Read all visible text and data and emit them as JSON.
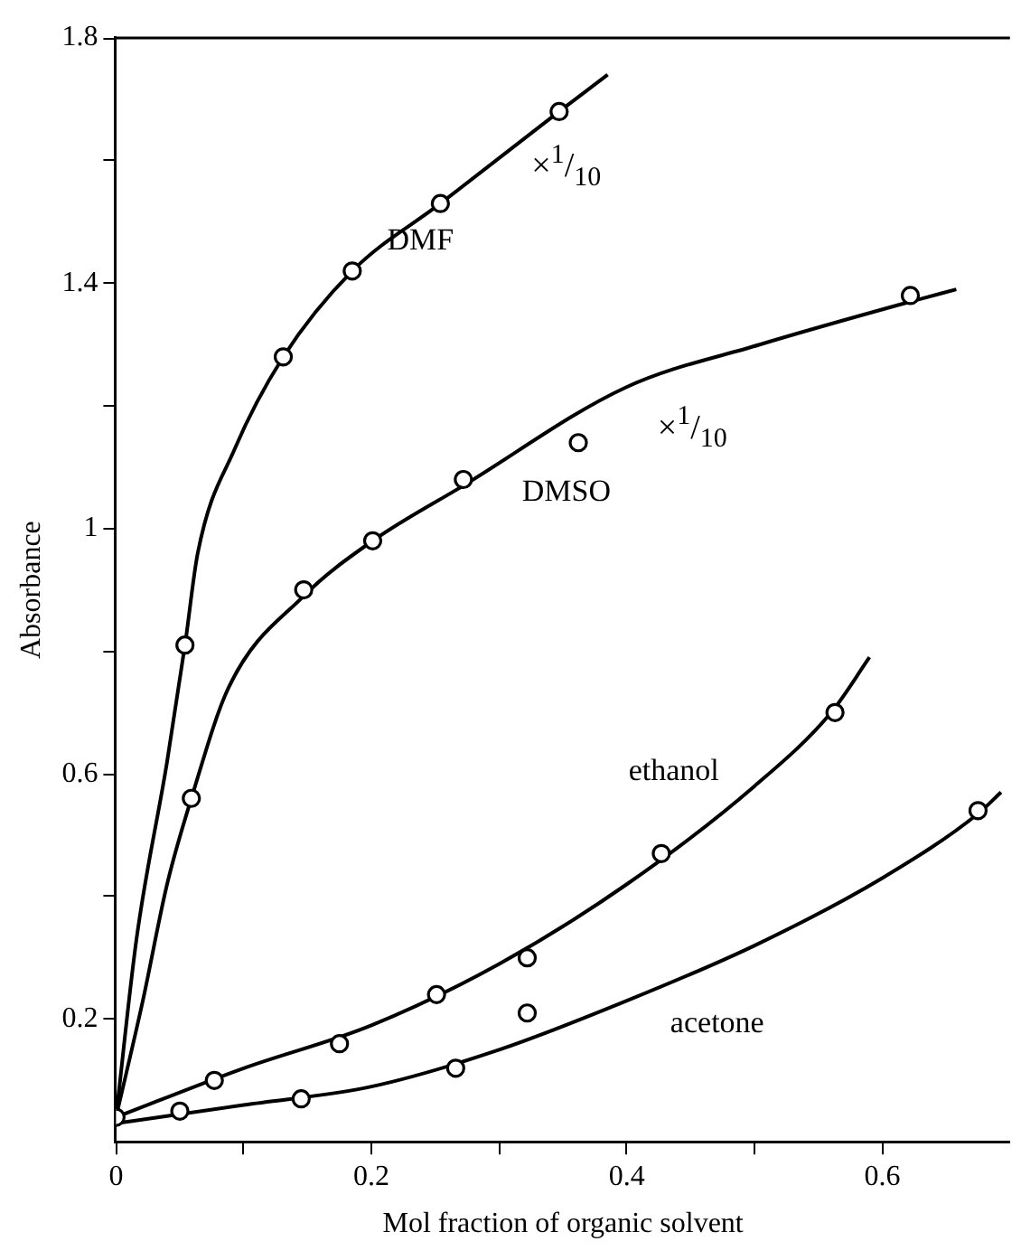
{
  "chart_data": {
    "type": "scatter",
    "xlabel": "Mol fraction of organic solvent",
    "ylabel": "Absorbance",
    "xlim": [
      0,
      0.7
    ],
    "ylim": [
      0,
      1.8
    ],
    "xticks": [
      0,
      {
        "value": 0.1,
        "label": null
      },
      0.2,
      {
        "value": 0.3,
        "label": null
      },
      0.4,
      {
        "value": 0.5,
        "label": null
      },
      0.6
    ],
    "yticks": [
      0.2,
      {
        "value": 0.4,
        "label": null
      },
      0.6,
      {
        "value": 0.8,
        "label": null
      },
      1.0,
      {
        "value": 1.2,
        "label": null
      },
      1.4,
      {
        "value": 1.6,
        "label": null
      },
      1.8
    ],
    "grid": false,
    "legend": false,
    "series": [
      {
        "color": "#000000",
        "marker": "circle",
        "x": [
          0.054,
          0.131,
          0.185,
          0.254,
          0.347
        ],
        "values": [
          0.81,
          1.28,
          1.42,
          1.53,
          1.68
        ]
      },
      {
        "type": "line",
        "name": "DMF",
        "color": "#000000",
        "marker": "none",
        "line_style": "solid",
        "x": [
          0,
          0.016,
          0.04,
          0.054,
          0.064,
          0.093,
          0.131,
          0.185,
          0.254,
          0.347,
          0.385
        ],
        "values": [
          0.04,
          0.33,
          0.62,
          0.81,
          0.96,
          1.13,
          1.28,
          1.42,
          1.53,
          1.68,
          1.74
        ]
      },
      {
        "color": "#000000",
        "marker": "circle",
        "x": [
          0.059,
          0.147,
          0.201,
          0.272,
          0.362,
          0.622
        ],
        "values": [
          0.56,
          0.9,
          0.98,
          1.08,
          1.14,
          1.38
        ]
      },
      {
        "type": "line",
        "name": "DMSO",
        "color": "#000000",
        "marker": "none",
        "line_style": "solid",
        "x": [
          0,
          0.021,
          0.04,
          0.059,
          0.088,
          0.147,
          0.201,
          0.272,
          0.399,
          0.504,
          0.622,
          0.658
        ],
        "values": [
          0.04,
          0.23,
          0.42,
          0.56,
          0.74,
          0.89,
          0.98,
          1.07,
          1.23,
          1.3,
          1.37,
          1.39
        ]
      },
      {
        "color": "#000000",
        "marker": "circle",
        "x": [
          0,
          0.077,
          0.175,
          0.251,
          0.322,
          0.427,
          0.563
        ],
        "values": [
          0.04,
          0.1,
          0.16,
          0.24,
          0.3,
          0.47,
          0.7
        ]
      },
      {
        "type": "line",
        "name": "ethanol",
        "color": "#000000",
        "marker": "none",
        "line_style": "solid",
        "x": [
          0,
          0.1,
          0.2,
          0.3,
          0.4,
          0.5,
          0.56,
          0.59
        ],
        "values": [
          0.04,
          0.12,
          0.19,
          0.29,
          0.42,
          0.58,
          0.7,
          0.79
        ]
      },
      {
        "color": "#000000",
        "marker": "circle",
        "x": [
          0.05,
          0.145,
          0.266,
          0.322,
          0.675
        ],
        "values": [
          0.05,
          0.07,
          0.12,
          0.21,
          0.54
        ]
      },
      {
        "type": "line",
        "name": "acetone",
        "color": "#000000",
        "marker": "none",
        "line_style": "solid",
        "x": [
          0,
          0.1,
          0.2,
          0.3,
          0.4,
          0.5,
          0.6,
          0.675,
          0.693
        ],
        "values": [
          0.03,
          0.06,
          0.09,
          0.15,
          0.23,
          0.32,
          0.43,
          0.535,
          0.57
        ]
      }
    ],
    "annotations": [
      "×$^{1}$/$_{10}$",
      "×$^{1}$/$_{10}$"
    ]
  }
}
